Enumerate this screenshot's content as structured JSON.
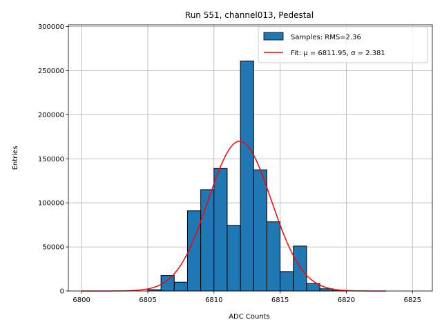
{
  "chart_data": {
    "type": "bar",
    "title": "Run 551, channel013, Pedestal",
    "xlabel": "ADC Counts",
    "ylabel": "Entries",
    "xlim": [
      6799,
      6826.5
    ],
    "ylim": [
      0,
      302000
    ],
    "xticks": [
      6800,
      6805,
      6810,
      6815,
      6820,
      6825
    ],
    "yticks": [
      0,
      50000,
      100000,
      150000,
      200000,
      250000,
      300000
    ],
    "grid": true,
    "legend_position": "top-right",
    "bin_width": 1,
    "bins": [
      {
        "x": 6805,
        "value": 1500
      },
      {
        "x": 6806,
        "value": 17500
      },
      {
        "x": 6807,
        "value": 10000
      },
      {
        "x": 6808,
        "value": 91000
      },
      {
        "x": 6809,
        "value": 115000
      },
      {
        "x": 6810,
        "value": 139000
      },
      {
        "x": 6811,
        "value": 74500
      },
      {
        "x": 6812,
        "value": 261000
      },
      {
        "x": 6813,
        "value": 137500
      },
      {
        "x": 6814,
        "value": 78500
      },
      {
        "x": 6815,
        "value": 22000
      },
      {
        "x": 6816,
        "value": 51000
      },
      {
        "x": 6817,
        "value": 8500
      },
      {
        "x": 6818,
        "value": 2500
      },
      {
        "x": 6819,
        "value": 500
      }
    ],
    "fit": {
      "mu": 6811.95,
      "sigma": 2.381,
      "amplitude": 170000,
      "x_range": [
        6800,
        6823
      ]
    },
    "series": [
      {
        "name": "Samples: RMS=2.36",
        "color": "#1f77b4",
        "kind": "histogram"
      },
      {
        "name": "Fit: μ = 6811.95, σ = 2.381",
        "color": "#ff0000",
        "kind": "line"
      }
    ]
  }
}
